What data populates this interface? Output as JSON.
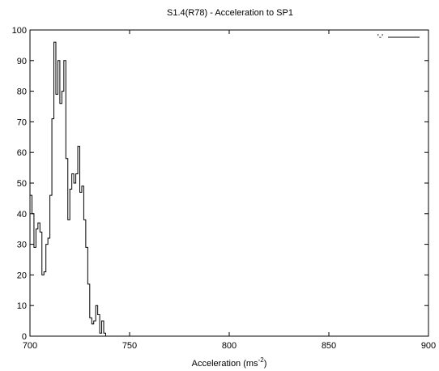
{
  "chart_data": {
    "type": "line",
    "title": "S1.4(R78) - Acceleration to SP1",
    "xlabel": "Acceleration (ms",
    "xlabel_sup": "-2",
    "xlabel_close": ")",
    "ylabel": "",
    "xlim": [
      700,
      900
    ],
    "ylim": [
      0,
      100
    ],
    "xticks": [
      700,
      750,
      800,
      850,
      900
    ],
    "yticks": [
      0,
      10,
      20,
      30,
      40,
      50,
      60,
      70,
      80,
      90,
      100
    ],
    "grid": false,
    "legend_position": "top-right",
    "series": [
      {
        "name": "'-'",
        "color": "#000000",
        "step": true,
        "x": [
          700,
          701,
          702,
          703,
          704,
          705,
          706,
          707,
          708,
          709,
          710,
          711,
          712,
          713,
          714,
          715,
          716,
          717,
          718,
          719,
          720,
          721,
          722,
          723,
          724,
          725,
          726,
          727,
          728,
          729,
          730,
          731,
          732,
          733,
          734,
          735,
          736,
          737,
          738,
          739,
          740,
          741
        ],
        "y": [
          46,
          40,
          29,
          35,
          37,
          34,
          20,
          21,
          30,
          32,
          46,
          71,
          96,
          79,
          90,
          76,
          80,
          90,
          58,
          38,
          48,
          53,
          50,
          53,
          62,
          47,
          49,
          38,
          29,
          17,
          6,
          4,
          5,
          10,
          7,
          1,
          5,
          1,
          0,
          0,
          0,
          0
        ]
      }
    ]
  }
}
